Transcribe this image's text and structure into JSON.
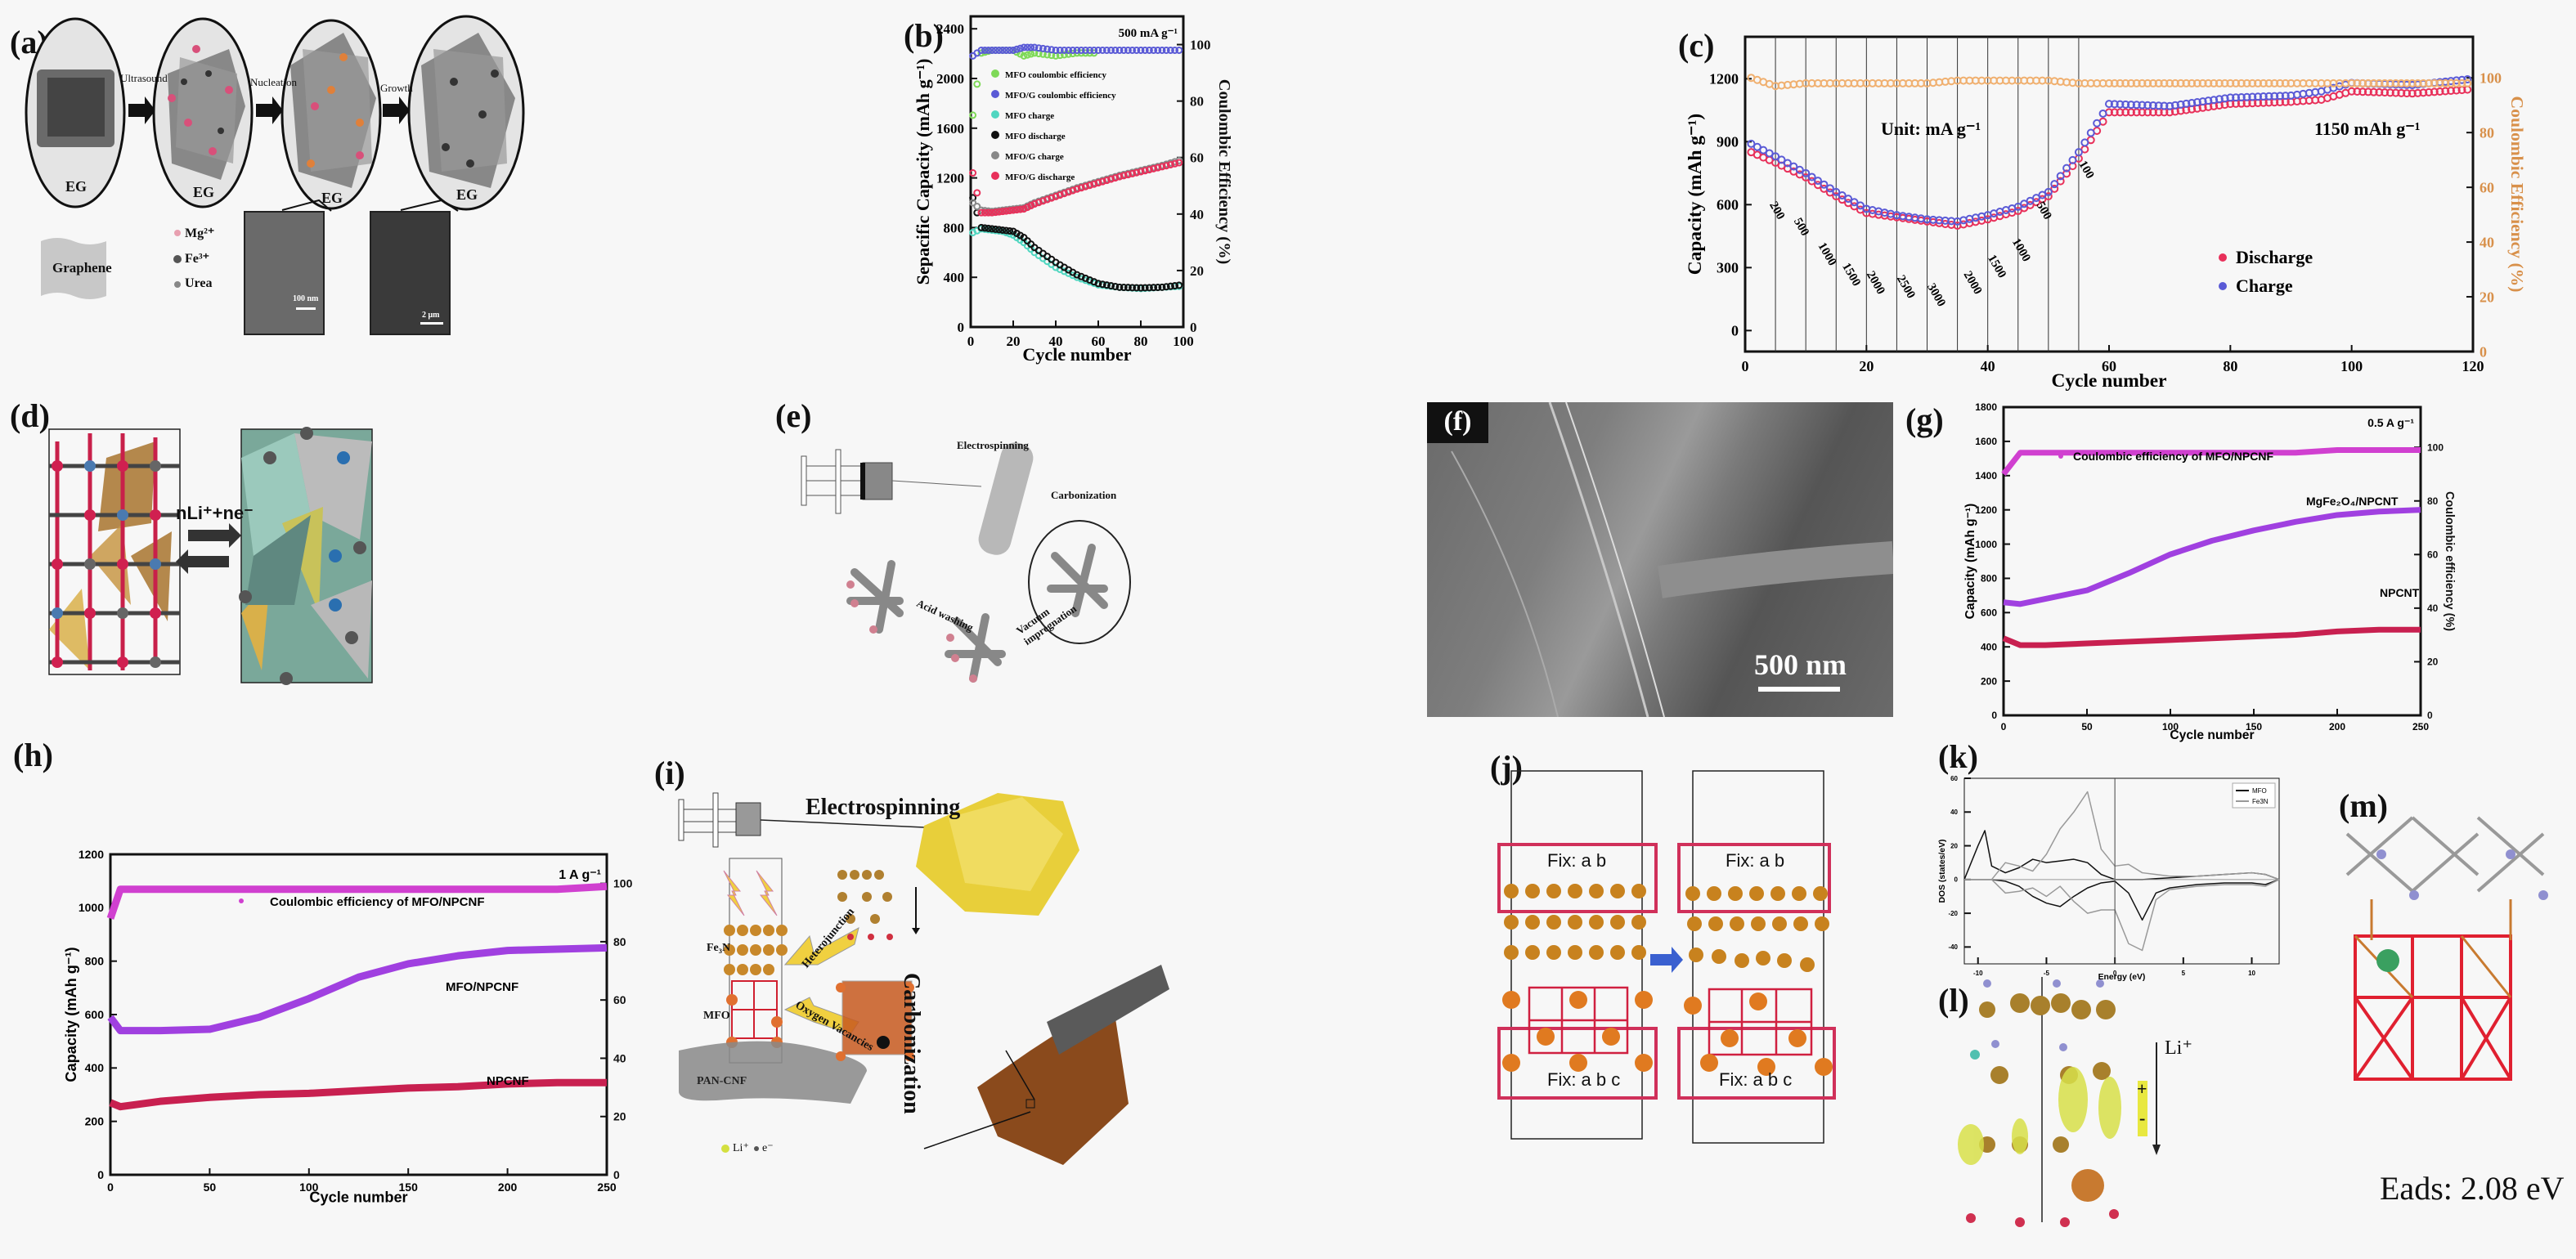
{
  "figure": {
    "panels": {
      "a": {
        "label": "(a)",
        "steps": [
          "Ultrasound",
          "Nucleation",
          "Growth"
        ],
        "circle_label": "EG",
        "graphene_label": "Graphene",
        "legend": [
          {
            "name": "Mg²⁺",
            "color": "#e8a0b0"
          },
          {
            "name": "Fe³⁺",
            "color": "#555555"
          },
          {
            "name": "Urea",
            "color": "#888888"
          }
        ],
        "sem_scalebars": [
          "100 nm",
          "2 μm"
        ]
      },
      "b": {
        "label": "(b)"
      },
      "c": {
        "label": "(c)"
      },
      "d": {
        "label": "(d)",
        "reaction": "nLi⁺+ne⁻"
      },
      "e": {
        "label": "(e)",
        "steps": [
          "Electrospinning",
          "Carbonization",
          "Acid washing",
          "Vacuum impregnation"
        ]
      },
      "f": {
        "label": "(f)",
        "scalebar": "500 nm"
      },
      "g": {
        "label": "(g)"
      },
      "h": {
        "label": "(h)"
      },
      "i": {
        "label": "(i)",
        "texts": {
          "electrospinning": "Electrospinning",
          "carbonization": "Carbonization",
          "heterojunction": "Heterojunction",
          "oxygen_vacancies": "Oxygen Vacancies",
          "fe3n": "Fe₃N",
          "mfo": "MFO",
          "pan": "PAN-CNF",
          "legend_li": "Li⁺",
          "legend_e": "e⁻"
        }
      },
      "j": {
        "label": "(j)",
        "fix_top": "Fix: a b",
        "fix_bottom": "Fix: a b c"
      },
      "k": {
        "label": "(k)"
      },
      "l": {
        "label": "(l)",
        "li": "Li⁺",
        "plus": "+",
        "minus": "-"
      },
      "m": {
        "label": "(m)",
        "eads": "Eads: 2.08 eV"
      }
    }
  },
  "chart_data": [
    {
      "id": "b",
      "type": "scatter",
      "title": "",
      "annotation": "500 mA g⁻¹",
      "xlabel": "Cycle number",
      "ylabel": "Sepacific Capacity (mAh g⁻¹)",
      "y2label": "Coulombic Efficiency (%)",
      "xlim": [
        0,
        100
      ],
      "ylim": [
        0,
        2500
      ],
      "y2lim": [
        0,
        110
      ],
      "xticks": [
        0,
        20,
        40,
        60,
        80,
        100
      ],
      "yticks": [
        0,
        400,
        800,
        1200,
        1600,
        2000,
        2400
      ],
      "y2ticks": [
        0,
        20,
        40,
        60,
        80,
        100
      ],
      "legend": [
        "MFO coulombic efficiency",
        "MFO/G coulombic efficiency",
        "MFO charge",
        "MFO discharge",
        "MFO/G charge",
        "MFO/G discharge"
      ],
      "x": [
        1,
        5,
        10,
        15,
        20,
        25,
        30,
        40,
        50,
        60,
        70,
        80,
        90,
        100
      ],
      "series": [
        {
          "name": "MFO coulombic efficiency",
          "axis": "right",
          "color": "#7ed957",
          "values": [
            75,
            97,
            98,
            98,
            98,
            96,
            97,
            96,
            97,
            97,
            null,
            null,
            null,
            null
          ]
        },
        {
          "name": "MFO/G coulombic efficiency",
          "axis": "right",
          "color": "#5a5ad6",
          "values": [
            96,
            98,
            98,
            98,
            98,
            99,
            99,
            98,
            98,
            98,
            98,
            98,
            98,
            98
          ]
        },
        {
          "name": "MFO charge",
          "axis": "left",
          "color": "#4fd6c0",
          "values": [
            760,
            790,
            780,
            770,
            740,
            680,
            600,
            480,
            400,
            340,
            320,
            310,
            320,
            330
          ]
        },
        {
          "name": "MFO discharge",
          "axis": "left",
          "color": "#111111",
          "values": [
            1040,
            800,
            790,
            780,
            770,
            720,
            640,
            520,
            420,
            350,
            320,
            315,
            320,
            340
          ]
        },
        {
          "name": "MFO/G charge",
          "axis": "left",
          "color": "#888888",
          "values": [
            1000,
            940,
            930,
            940,
            950,
            960,
            1000,
            1060,
            1120,
            1170,
            1220,
            1260,
            1300,
            1350
          ]
        },
        {
          "name": "MFO/G discharge",
          "axis": "left",
          "color": "#e8305a",
          "values": [
            1240,
            920,
            920,
            930,
            940,
            950,
            990,
            1050,
            1110,
            1160,
            1210,
            1250,
            1290,
            1330
          ]
        }
      ]
    },
    {
      "id": "c",
      "type": "scatter",
      "title": "",
      "annotations": [
        "Unit: mA g⁻¹",
        "1150 mAh g⁻¹"
      ],
      "rate_labels": [
        "200",
        "500",
        "1000",
        "1500",
        "2000",
        "2500",
        "3000",
        "2000",
        "1500",
        "1000",
        "500",
        "100"
      ],
      "xlabel": "Cycle number",
      "ylabel": "Capacity (mAh g⁻¹)",
      "y2label": "Coulombic Efficiency (%)",
      "xlim": [
        0,
        120
      ],
      "ylim": [
        -100,
        1400
      ],
      "y2lim": [
        0,
        115
      ],
      "xticks": [
        0,
        20,
        40,
        60,
        80,
        100,
        120
      ],
      "yticks": [
        0,
        300,
        600,
        900,
        1200
      ],
      "y2ticks": [
        0,
        20,
        40,
        60,
        80,
        100
      ],
      "vlines": [
        5,
        10,
        15,
        20,
        25,
        30,
        35,
        40,
        45,
        50,
        55
      ],
      "legend": [
        "Discharge",
        "Charge"
      ],
      "x": [
        1,
        5,
        10,
        15,
        20,
        25,
        30,
        35,
        40,
        45,
        50,
        55,
        60,
        70,
        80,
        90,
        95,
        100,
        110,
        120
      ],
      "series": [
        {
          "name": "Discharge",
          "axis": "left",
          "color": "#e8305a",
          "values": [
            850,
            800,
            730,
            640,
            560,
            540,
            520,
            500,
            530,
            570,
            640,
            820,
            1040,
            1040,
            1080,
            1090,
            1100,
            1140,
            1130,
            1150
          ]
        },
        {
          "name": "Charge",
          "axis": "left",
          "color": "#5a5ad6",
          "values": [
            890,
            830,
            750,
            660,
            580,
            550,
            530,
            520,
            550,
            590,
            660,
            850,
            1080,
            1070,
            1110,
            1120,
            1140,
            1180,
            1170,
            1200
          ]
        },
        {
          "name": "Coulombic efficiency",
          "axis": "right",
          "color": "#f0b070",
          "values": [
            100,
            97,
            98,
            98,
            98,
            98,
            98,
            99,
            99,
            99,
            99,
            98,
            98,
            98,
            98,
            98,
            98,
            98,
            98,
            98
          ]
        }
      ]
    },
    {
      "id": "g",
      "type": "line",
      "title": "",
      "annotations": [
        "0.5 A g⁻¹",
        "MgFe₂O₄/NPCNT",
        "NPCNT"
      ],
      "legend": [
        "Coulombic efficiency of MFO/NPCNF"
      ],
      "xlabel": "Cycle number",
      "ylabel": "Capacity (mAh g⁻¹)",
      "y2label": "Coulombic efficiency (%)",
      "xlim": [
        0,
        250
      ],
      "ylim": [
        0,
        1800
      ],
      "y2lim": [
        0,
        115
      ],
      "xticks": [
        0,
        50,
        100,
        150,
        200,
        250
      ],
      "yticks": [
        0,
        200,
        400,
        600,
        800,
        1000,
        1200,
        1400,
        1600,
        1800
      ],
      "y2ticks": [
        0,
        20,
        40,
        60,
        80,
        100
      ],
      "x": [
        0,
        10,
        25,
        50,
        75,
        100,
        125,
        150,
        175,
        200,
        225,
        250
      ],
      "series": [
        {
          "name": "Coulombic efficiency of MFO/NPCNF",
          "axis": "right",
          "color": "#d040d0",
          "values": [
            90,
            98,
            98,
            98,
            98,
            98,
            98,
            98,
            98,
            99,
            99,
            99
          ]
        },
        {
          "name": "MgFe2O4/NPCNT",
          "axis": "left",
          "color": "#a040e0",
          "values": [
            660,
            650,
            680,
            730,
            830,
            940,
            1020,
            1080,
            1130,
            1170,
            1190,
            1200
          ]
        },
        {
          "name": "NPCNT",
          "axis": "left",
          "color": "#c82050",
          "values": [
            450,
            410,
            410,
            420,
            430,
            440,
            450,
            460,
            470,
            490,
            500,
            500
          ]
        }
      ]
    },
    {
      "id": "h",
      "type": "line",
      "title": "",
      "annotations": [
        "1 A g⁻¹",
        "MFO/NPCNF",
        "NPCNF"
      ],
      "legend": [
        "Coulombic efficiency of MFO/NPCNF"
      ],
      "xlabel": "Cycle number",
      "ylabel": "Capacity (mAh g⁻¹)",
      "y2label": "",
      "xlim": [
        0,
        250
      ],
      "ylim": [
        0,
        1200
      ],
      "y2lim": [
        0,
        110
      ],
      "xticks": [
        0,
        50,
        100,
        150,
        200,
        250
      ],
      "yticks": [
        0,
        200,
        400,
        600,
        800,
        1000,
        1200
      ],
      "y2ticks": [
        0,
        20,
        40,
        60,
        80,
        100
      ],
      "x": [
        0,
        5,
        25,
        50,
        75,
        100,
        125,
        150,
        175,
        200,
        225,
        250
      ],
      "series": [
        {
          "name": "Coulombic efficiency of MFO/NPCNF",
          "axis": "right",
          "color": "#d040d0",
          "values": [
            88,
            98,
            98,
            98,
            98,
            98,
            98,
            98,
            98,
            98,
            98,
            99
          ]
        },
        {
          "name": "MFO/NPCNF",
          "axis": "left",
          "color": "#a040e0",
          "values": [
            590,
            540,
            540,
            545,
            590,
            660,
            740,
            790,
            820,
            840,
            845,
            850
          ]
        },
        {
          "name": "NPCNF",
          "axis": "left",
          "color": "#c82050",
          "values": [
            270,
            255,
            275,
            290,
            300,
            305,
            315,
            325,
            330,
            340,
            345,
            345
          ]
        }
      ]
    },
    {
      "id": "k",
      "type": "line",
      "title": "",
      "xlabel": "Energy (eV)",
      "ylabel": "DOS (states/eV)",
      "xlim": [
        -11,
        12
      ],
      "ylim": [
        -50,
        60
      ],
      "xticks": [
        -10,
        -5,
        0,
        5,
        10
      ],
      "yticks": [
        -40,
        -20,
        0,
        20,
        40,
        60
      ],
      "legend": [
        "MFO",
        "Fe3N"
      ],
      "x": [
        -11,
        -10,
        -9.5,
        -9,
        -8,
        -7,
        -6,
        -5,
        -4,
        -3,
        -2,
        -1,
        0,
        1,
        2,
        3,
        4,
        6,
        8,
        10,
        11,
        12
      ],
      "series": [
        {
          "name": "MFO (spin up)",
          "color": "#111111",
          "values": [
            0,
            20,
            29,
            8,
            4,
            7,
            12,
            10,
            11,
            12,
            10,
            3,
            0,
            0,
            0,
            0.5,
            1,
            2,
            3,
            4,
            3,
            0
          ]
        },
        {
          "name": "MFO (spin down)",
          "color": "#111111",
          "values": [
            0,
            0,
            0,
            0,
            -1,
            -4,
            -10,
            -14,
            -16,
            -10,
            -5,
            -2,
            -1,
            -8,
            -24,
            -8,
            -5,
            -3,
            -2,
            -2,
            -3,
            0
          ]
        },
        {
          "name": "Fe3N (spin up)",
          "color": "#999999",
          "values": [
            0,
            0,
            0,
            0,
            10,
            8,
            5,
            15,
            30,
            40,
            52,
            18,
            8,
            9,
            4,
            3,
            2,
            2,
            3,
            4,
            3,
            0
          ]
        },
        {
          "name": "Fe3N (spin down)",
          "color": "#999999",
          "values": [
            0,
            0,
            0,
            0,
            -8,
            -7,
            -5,
            -10,
            -4,
            -13,
            -20,
            -18,
            -18,
            -38,
            -42,
            -12,
            -6,
            -4,
            -3,
            -3,
            -4,
            0
          ]
        }
      ]
    }
  ]
}
